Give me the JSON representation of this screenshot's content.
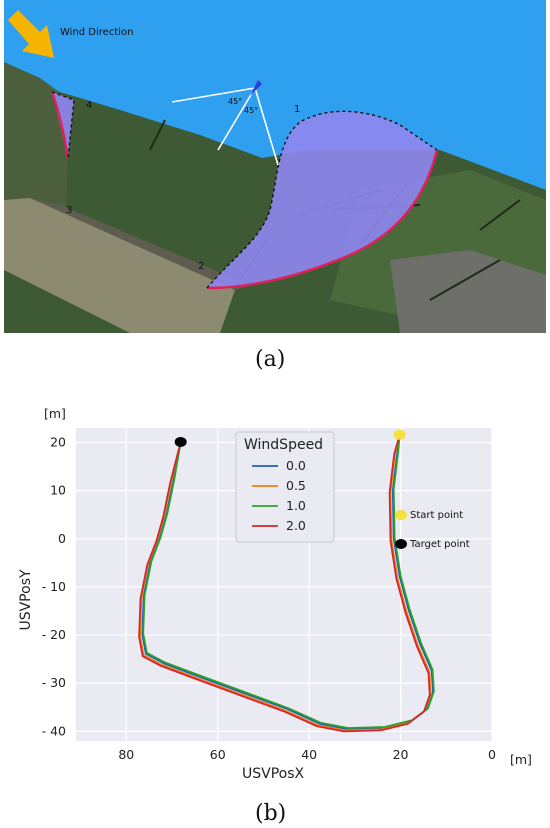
{
  "panel_a": {
    "label": "(a)",
    "wind_label": "Wind Direction",
    "angle_labels": [
      "45°",
      "45°"
    ],
    "region_numbers": [
      "1",
      "2",
      "3",
      "4"
    ],
    "colors": {
      "water": "#2f9ff0",
      "region_fill": "#8f86ef",
      "boundary_red": "#e0205a",
      "arrow": "#f5b400"
    }
  },
  "panel_b": {
    "label": "(b)"
  },
  "chart_data": {
    "type": "line",
    "xlabel": "USVPosX",
    "ylabel": "USVPosY",
    "x_unit": "[m]",
    "y_unit": "[m]",
    "xlim": [
      91,
      0
    ],
    "ylim": [
      -42,
      23
    ],
    "x_ticks": [
      80,
      60,
      40,
      20,
      0
    ],
    "y_ticks": [
      20,
      10,
      0,
      -10,
      -20,
      -30,
      -40
    ],
    "x_tick_labels": [
      "80",
      "60",
      "40",
      "20",
      "0"
    ],
    "y_tick_labels": [
      "20",
      "10",
      "0",
      "- 10",
      "- 20",
      "- 30",
      "- 40"
    ],
    "grid": true,
    "legend": {
      "title": "WindSpeed",
      "placement": "top-center",
      "entries": [
        {
          "label": "0.0",
          "color": "#1f5fb4"
        },
        {
          "label": "0.5",
          "color": "#ef7f1a"
        },
        {
          "label": "1.0",
          "color": "#2ca02c"
        },
        {
          "label": "2.0",
          "color": "#d62728"
        }
      ]
    },
    "markers": [
      {
        "label": "Start point",
        "x": 20.2,
        "y": 21.6,
        "color": "#f5e03a"
      },
      {
        "label": "Target point",
        "x": 68.1,
        "y": 20.1,
        "color": "#000000"
      }
    ],
    "marker_legend": [
      {
        "label": "Start point",
        "color": "#f5e03a"
      },
      {
        "label": "Target point",
        "color": "#000000"
      }
    ],
    "base_path": [
      [
        20.2,
        21.6
      ],
      [
        21.0,
        18.0
      ],
      [
        22.0,
        10.0
      ],
      [
        21.8,
        0.0
      ],
      [
        20.5,
        -8.0
      ],
      [
        18.5,
        -15.0
      ],
      [
        16.0,
        -22.0
      ],
      [
        13.5,
        -27.5
      ],
      [
        13.2,
        -32.0
      ],
      [
        14.5,
        -35.5
      ],
      [
        18.0,
        -38.0
      ],
      [
        24.0,
        -39.4
      ],
      [
        32.0,
        -39.6
      ],
      [
        38.0,
        -38.5
      ],
      [
        45.0,
        -35.5
      ],
      [
        55.0,
        -32.0
      ],
      [
        65.0,
        -28.5
      ],
      [
        72.0,
        -26.0
      ],
      [
        76.0,
        -24.0
      ],
      [
        76.8,
        -20.0
      ],
      [
        76.5,
        -12.0
      ],
      [
        75.0,
        -5.0
      ],
      [
        73.0,
        0.0
      ],
      [
        71.5,
        5.0
      ],
      [
        70.0,
        12.0
      ],
      [
        68.1,
        20.1
      ]
    ],
    "series": [
      {
        "name": "0.0",
        "offset_x": -0.3,
        "offset_y": 0.1
      },
      {
        "name": "0.5",
        "offset_x": 0.2,
        "offset_y": -0.2
      },
      {
        "name": "1.0",
        "offset_x": -0.5,
        "offset_y": 0.3
      },
      {
        "name": "2.0",
        "offset_x": 0.4,
        "offset_y": -0.4
      }
    ]
  }
}
